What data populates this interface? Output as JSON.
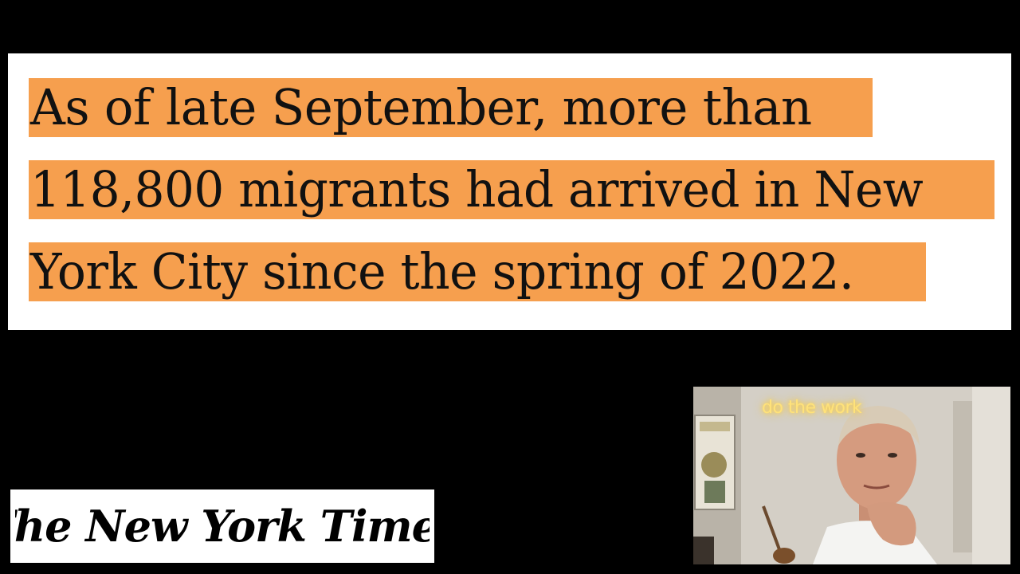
{
  "quote": {
    "line1": "As of late September, more than",
    "line2": "118,800 migrants had arrived in New",
    "line3": "York City since the spring of 2022.",
    "highlight_color": "#f69f4e"
  },
  "logo": {
    "text": "The New York Times"
  },
  "webcam": {
    "neon_sign": "do the work"
  }
}
